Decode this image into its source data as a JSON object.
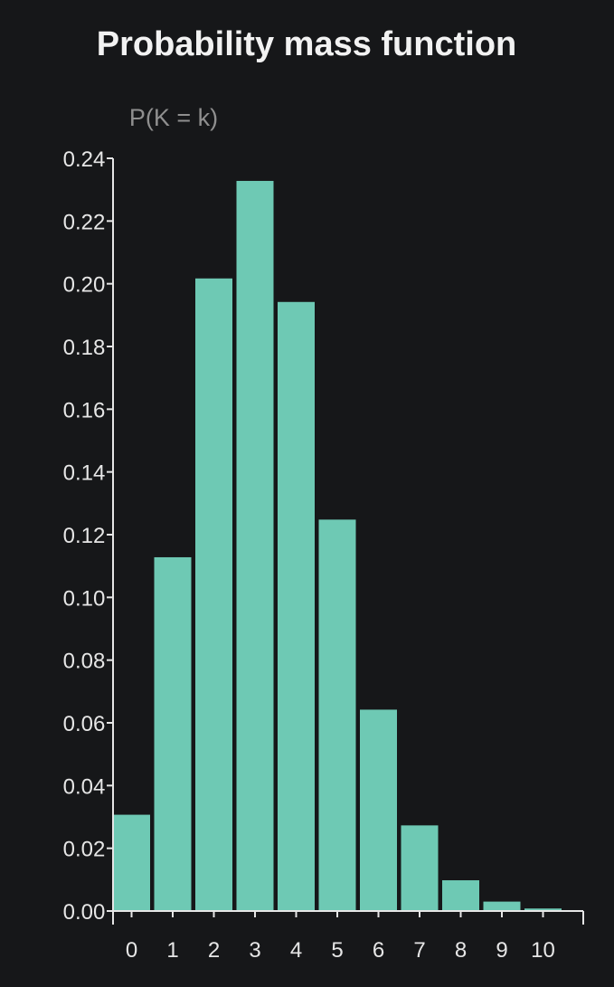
{
  "chart_data": {
    "type": "bar",
    "title": "Probability mass function",
    "ylabel": "P(K = k)",
    "xlabel": "",
    "categories": [
      "0",
      "1",
      "2",
      "3",
      "4",
      "5",
      "6",
      "7",
      "8",
      "9",
      "10"
    ],
    "values": [
      0.0307,
      0.1128,
      0.2017,
      0.2328,
      0.1942,
      0.1248,
      0.0642,
      0.0273,
      0.0098,
      0.003,
      0.0008
    ],
    "ylim": [
      0,
      0.24
    ],
    "yticks": [
      "0.00",
      "0.02",
      "0.04",
      "0.06",
      "0.08",
      "0.10",
      "0.12",
      "0.14",
      "0.16",
      "0.18",
      "0.20",
      "0.22",
      "0.24"
    ],
    "grid": false,
    "legend": "none",
    "colors": {
      "background": "#161719",
      "bar": "#6ec9b4",
      "axis": "#e6e6e6",
      "title": "#f2f2f2",
      "ylabel": "#8f8f8f"
    }
  }
}
